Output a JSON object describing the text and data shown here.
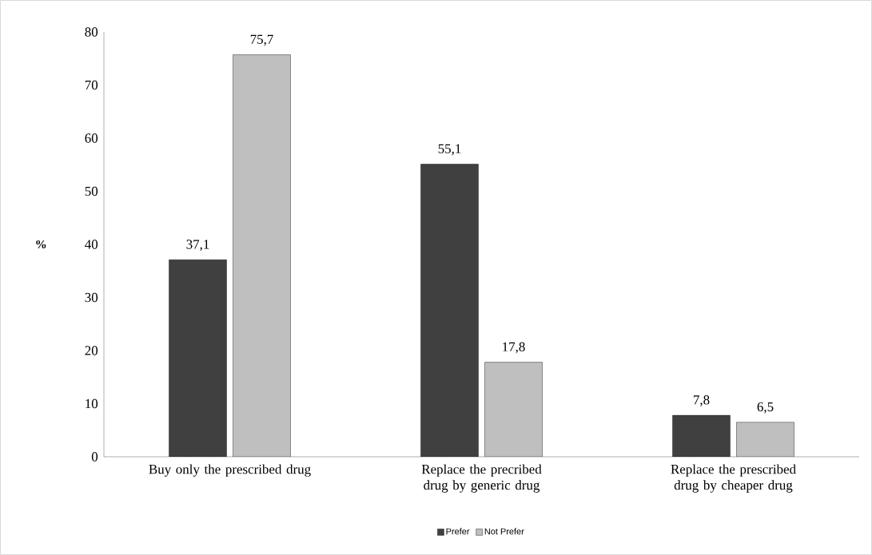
{
  "chart_data": {
    "type": "bar",
    "ylabel": "%",
    "categories": [
      "Buy only the prescribed drug",
      "Replace the precribed drug by generic drug",
      "Replace the prescribed drug by cheaper drug"
    ],
    "series": [
      {
        "name": "Prefer",
        "color": "#404040",
        "values": [
          37.1,
          55.1,
          7.8
        ],
        "value_labels": [
          "37,1",
          "55,1",
          "7,8"
        ]
      },
      {
        "name": "Not Prefer",
        "color": "#bfbfbf",
        "values": [
          75.7,
          17.8,
          6.5
        ],
        "value_labels": [
          "75,7",
          "17,8",
          "6,5"
        ]
      }
    ],
    "ylim": [
      0,
      80
    ],
    "yticks": [
      0,
      10,
      20,
      30,
      40,
      50,
      60,
      70,
      80
    ],
    "legend": "bottom"
  }
}
